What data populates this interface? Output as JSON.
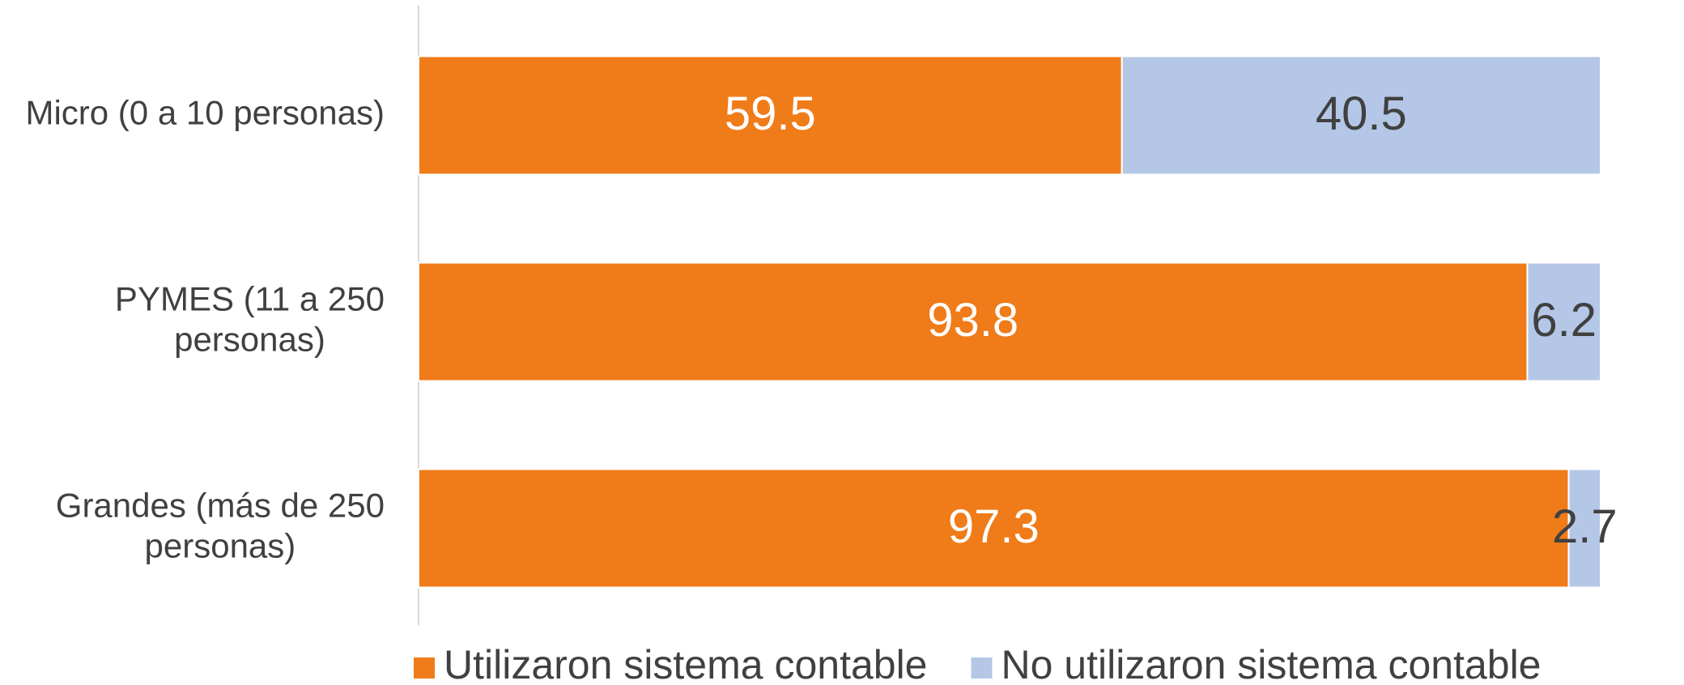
{
  "chart_data": {
    "type": "stacked-bar-horizontal",
    "categories": [
      "Micro (0 a 10 personas)",
      "PYMES (11 a 250 personas)",
      "Grandes (más de 250 personas)"
    ],
    "series": [
      {
        "name": "Utilizaron sistema contable",
        "color": "#f07b19",
        "label_color": "#ffffff",
        "values": [
          59.5,
          93.8,
          97.3
        ]
      },
      {
        "name": "No utilizaron sistema contable",
        "color": "#b4c7e7",
        "label_color": "#404040",
        "values": [
          40.5,
          6.2,
          2.7
        ]
      }
    ],
    "xlim": [
      0,
      100
    ],
    "legend": "bottom"
  }
}
